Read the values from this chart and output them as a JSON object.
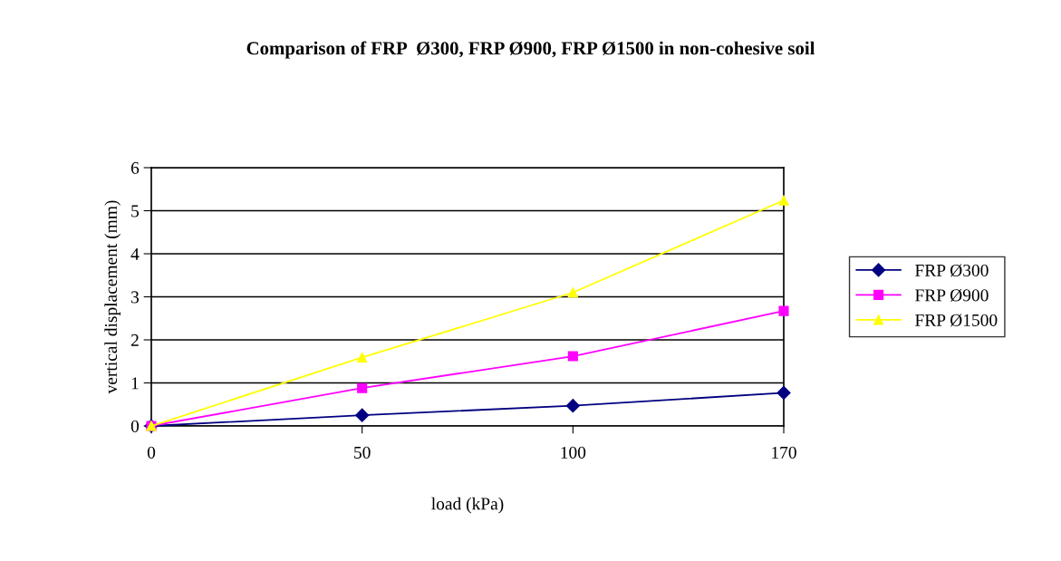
{
  "chart_data": {
    "type": "line",
    "title": "Comparison of FRP  Ø300, FRP Ø900, FRP Ø1500 in non-cohesive soil",
    "xlabel": "load (kPa)",
    "ylabel": "vertical displacement (mm)",
    "categories": [
      "0",
      "50",
      "100",
      "170"
    ],
    "series": [
      {
        "name": "FRP Ø300",
        "color": "#000080",
        "marker": "diamond",
        "values": [
          0,
          0.25,
          0.47,
          0.77
        ]
      },
      {
        "name": "FRP Ø900",
        "color": "#ff00ff",
        "marker": "square",
        "values": [
          0,
          0.88,
          1.62,
          2.67
        ]
      },
      {
        "name": "FRP Ø1500",
        "color": "#ffff00",
        "marker": "triangle",
        "values": [
          0,
          1.59,
          3.1,
          5.24
        ]
      }
    ],
    "ylim": [
      0,
      6
    ],
    "yticks": [
      0,
      1,
      2,
      3,
      4,
      5,
      6
    ],
    "grid": "y",
    "legend": "right",
    "line_style": "solid"
  }
}
